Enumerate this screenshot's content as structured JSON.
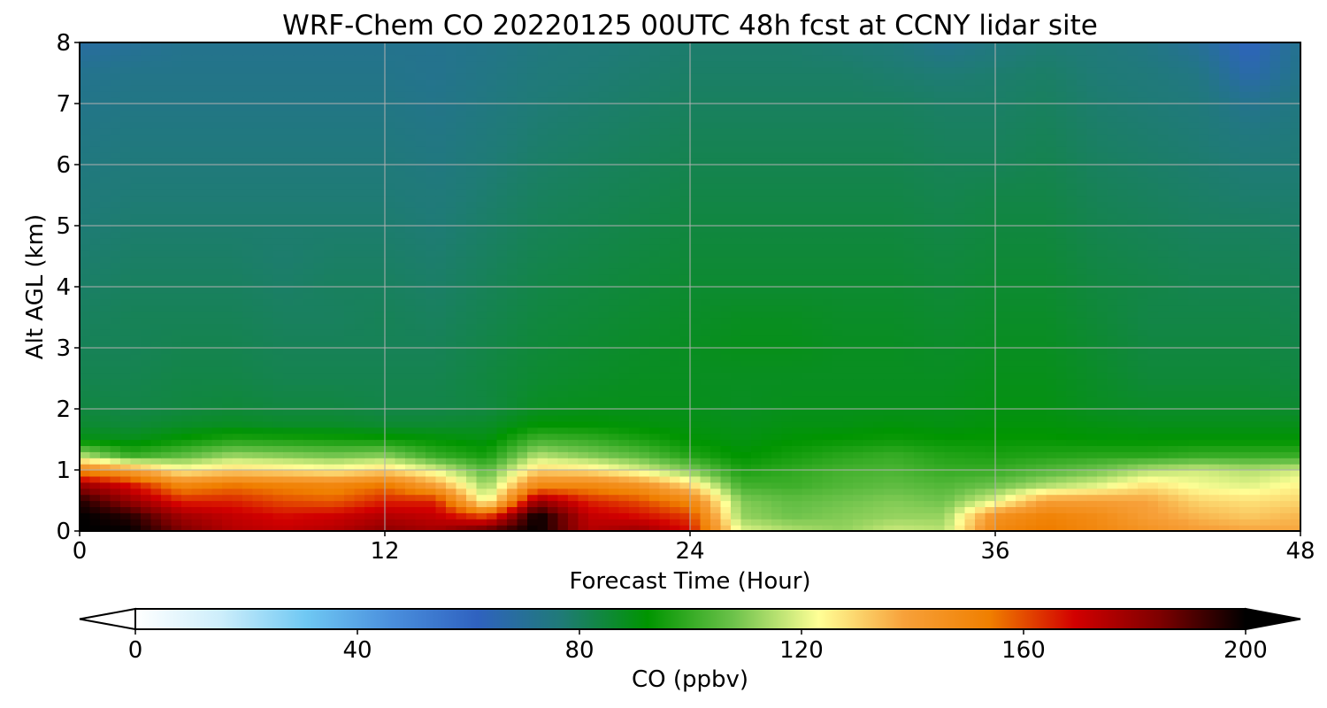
{
  "chart_data": {
    "type": "heatmap",
    "title": "WRF-Chem CO  20220125 00UTC 48h fcst at CCNY lidar site",
    "xlabel": "Forecast Time (Hour)",
    "ylabel": "Alt AGL (km)",
    "xlim": [
      0,
      48
    ],
    "ylim": [
      0,
      8
    ],
    "xticks": [
      0,
      12,
      24,
      36,
      48
    ],
    "yticks": [
      0,
      1,
      2,
      3,
      4,
      5,
      6,
      7,
      8
    ],
    "grid": true,
    "colorbar": {
      "label": "CO  (ppbv)",
      "orientation": "horizontal",
      "range": [
        0,
        200
      ],
      "ticks": [
        0,
        40,
        80,
        120,
        160,
        200
      ],
      "extend": "both",
      "colors": [
        "#ffffff",
        "#cdeefb",
        "#6fc8f3",
        "#4a8fdd",
        "#2f62c0",
        "#1f7b76",
        "#009500",
        "#6cc24a",
        "#ffff96",
        "#f7a13a",
        "#f07f00",
        "#d20000",
        "#7d0000",
        "#000000"
      ]
    },
    "field": {
      "units": "ppbv",
      "x": [
        0,
        2,
        4,
        6,
        8,
        10,
        12,
        14,
        16,
        18,
        20,
        22,
        24,
        26,
        28,
        30,
        32,
        34,
        36,
        38,
        40,
        42,
        44,
        46,
        48
      ],
      "y": [
        0,
        0.25,
        0.5,
        0.75,
        1.0,
        1.25,
        1.5,
        1.75,
        2.0,
        2.5,
        3.0,
        3.5,
        4.0,
        4.5,
        5.0,
        5.5,
        6.0,
        6.5,
        7.0,
        7.5,
        8.0
      ],
      "values": [
        [
          200,
          200,
          185,
          175,
          172,
          175,
          182,
          178,
          190,
          200,
          175,
          180,
          168,
          120,
          115,
          112,
          118,
          116,
          150,
          155,
          150,
          145,
          140,
          138,
          138
        ],
        [
          200,
          195,
          178,
          172,
          168,
          170,
          175,
          172,
          160,
          200,
          172,
          168,
          162,
          112,
          108,
          110,
          112,
          112,
          145,
          152,
          148,
          140,
          135,
          132,
          135
        ],
        [
          196,
          180,
          165,
          165,
          160,
          158,
          165,
          165,
          120,
          180,
          165,
          160,
          150,
          110,
          106,
          108,
          110,
          108,
          120,
          140,
          140,
          138,
          130,
          128,
          130
        ],
        [
          180,
          168,
          150,
          155,
          152,
          150,
          155,
          140,
          112,
          150,
          150,
          145,
          130,
          102,
          101,
          104,
          106,
          104,
          108,
          115,
          120,
          128,
          122,
          120,
          125
        ],
        [
          150,
          140,
          125,
          130,
          128,
          125,
          130,
          120,
          105,
          130,
          128,
          120,
          110,
          96,
          99,
          102,
          103,
          100,
          100,
          104,
          108,
          115,
          118,
          115,
          118
        ],
        [
          115,
          100,
          105,
          112,
          110,
          108,
          110,
          100,
          95,
          115,
          110,
          105,
          97,
          92,
          95,
          98,
          100,
          97,
          96,
          97,
          98,
          98,
          100,
          100,
          100
        ],
        [
          90,
          89,
          93,
          97,
          96,
          95,
          94,
          92,
          90,
          102,
          100,
          96,
          92,
          90,
          92,
          93,
          94,
          93,
          93,
          93,
          92,
          92,
          92,
          92,
          92
        ],
        [
          86,
          85,
          87,
          88,
          87,
          87,
          86,
          86,
          87,
          92,
          92,
          91,
          90,
          89,
          90,
          90,
          91,
          90,
          91,
          91,
          90,
          89,
          89,
          89,
          89
        ],
        [
          84,
          83,
          84,
          85,
          84,
          84,
          83,
          83,
          84,
          88,
          89,
          89,
          89,
          88,
          89,
          89,
          89,
          89,
          90,
          90,
          88,
          87,
          87,
          87,
          86
        ],
        [
          82,
          82,
          83,
          83,
          82,
          82,
          82,
          82,
          84,
          86,
          87,
          88,
          88,
          88,
          88,
          88,
          88,
          88,
          89,
          89,
          87,
          85,
          85,
          85,
          84
        ],
        [
          81,
          81,
          82,
          82,
          81,
          81,
          81,
          81,
          83,
          85,
          86,
          87,
          88,
          89,
          89,
          88,
          88,
          87,
          88,
          88,
          86,
          84,
          84,
          84,
          83
        ],
        [
          80,
          81,
          81,
          81,
          80,
          80,
          81,
          80,
          82,
          84,
          85,
          86,
          87,
          88,
          88,
          87,
          87,
          86,
          87,
          87,
          85,
          83,
          83,
          83,
          82
        ],
        [
          79,
          80,
          80,
          80,
          79,
          80,
          80,
          79,
          81,
          83,
          84,
          85,
          86,
          86,
          86,
          86,
          86,
          85,
          86,
          86,
          84,
          83,
          82,
          82,
          81
        ],
        [
          78,
          79,
          79,
          79,
          78,
          79,
          79,
          78,
          80,
          82,
          83,
          84,
          85,
          85,
          85,
          85,
          85,
          84,
          85,
          85,
          83,
          82,
          81,
          81,
          80
        ],
        [
          77,
          78,
          78,
          78,
          78,
          78,
          78,
          77,
          79,
          81,
          82,
          83,
          84,
          84,
          84,
          84,
          84,
          83,
          84,
          84,
          82,
          81,
          80,
          80,
          79
        ],
        [
          76,
          77,
          77,
          77,
          77,
          77,
          77,
          76,
          78,
          80,
          81,
          82,
          83,
          83,
          83,
          83,
          83,
          82,
          83,
          83,
          81,
          80,
          79,
          78,
          78
        ],
        [
          75,
          76,
          76,
          76,
          76,
          76,
          76,
          75,
          77,
          79,
          80,
          81,
          82,
          82,
          82,
          82,
          82,
          81,
          81,
          82,
          80,
          79,
          78,
          77,
          77
        ],
        [
          74,
          75,
          75,
          75,
          75,
          75,
          75,
          74,
          76,
          78,
          79,
          80,
          81,
          81,
          81,
          81,
          81,
          80,
          80,
          81,
          79,
          78,
          77,
          75,
          76
        ],
        [
          73,
          74,
          74,
          74,
          74,
          74,
          74,
          73,
          75,
          77,
          78,
          79,
          80,
          80,
          80,
          80,
          80,
          79,
          79,
          80,
          78,
          77,
          76,
          72,
          75
        ],
        [
          72,
          73,
          73,
          73,
          73,
          73,
          73,
          72,
          74,
          76,
          77,
          78,
          79,
          79,
          79,
          79,
          78,
          77,
          78,
          79,
          77,
          76,
          74,
          66,
          73
        ],
        [
          68,
          70,
          72,
          72,
          72,
          72,
          72,
          72,
          73,
          75,
          76,
          77,
          78,
          78,
          78,
          77,
          76,
          72,
          75,
          77,
          76,
          74,
          70,
          62,
          72
        ]
      ]
    }
  }
}
